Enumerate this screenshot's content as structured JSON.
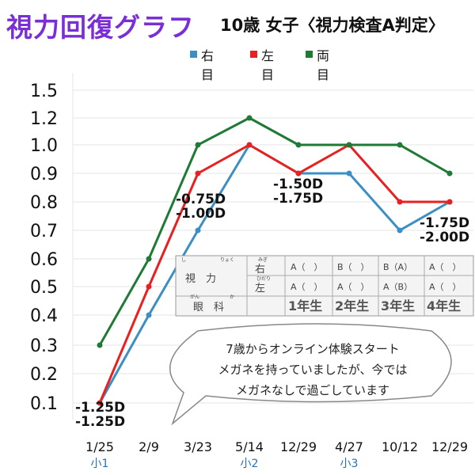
{
  "header": {
    "title": "視力回復グラフ",
    "subtitle": "10歳 女子〈視力検査A判定〉"
  },
  "chart_data": {
    "type": "line",
    "categories": [
      "1/25",
      "2/9",
      "3/23",
      "5/14",
      "12/29",
      "4/27",
      "10/12",
      "12/29"
    ],
    "grades": [
      "小1",
      "",
      "",
      "小2",
      "",
      "小3",
      "",
      ""
    ],
    "y_ticks": [
      "0.1",
      "0.2",
      "0.3",
      "0.4",
      "0.5",
      "0.6",
      "0.7",
      "0.8",
      "0.9",
      "1.0",
      "1.2",
      "1.5"
    ],
    "grid": true,
    "legend_position": "top-center",
    "series": [
      {
        "name": "右目",
        "color": "#3b8fc4",
        "values": [
          0.1,
          0.4,
          0.7,
          1.0,
          0.9,
          0.9,
          0.7,
          0.8
        ]
      },
      {
        "name": "左目",
        "color": "#e8201f",
        "values": [
          0.1,
          0.5,
          0.9,
          1.0,
          0.9,
          1.0,
          0.8,
          0.8
        ]
      },
      {
        "name": "両目",
        "color": "#1e7a35",
        "values": [
          0.3,
          0.6,
          1.0,
          1.2,
          1.0,
          1.0,
          1.0,
          0.9
        ]
      }
    ],
    "annotations": [
      {
        "category_index": 0,
        "lines": [
          "-1.25D",
          "-1.25D"
        ]
      },
      {
        "category_index": 2,
        "lines": [
          "-0.75D",
          "-1.00D"
        ]
      },
      {
        "category_index": 4,
        "lines": [
          "-1.50D",
          "-1.75D"
        ]
      },
      {
        "category_index": 7,
        "lines": [
          "-1.75D",
          "-2.00D"
        ]
      }
    ]
  },
  "exam_table": {
    "row_labels": [
      "視　力",
      "眼　科"
    ],
    "ruby": [
      "し",
      "りょく",
      "がん",
      "か"
    ],
    "eye_labels": [
      "右",
      "左"
    ],
    "eye_ruby": [
      "みぎ",
      "ひだり"
    ],
    "grades": [
      "1年生",
      "2年生",
      "3年生",
      "4年生"
    ],
    "right_results": [
      "A（　）",
      "B（　）",
      "B（A）",
      "A（　）"
    ],
    "left_results": [
      "A（　）",
      "A（　）",
      "A（B）",
      "A（　）"
    ]
  },
  "comment": {
    "lines": [
      "7歳からオンライン体験スタート",
      "メガネを持っていましたが、今では",
      "メガネなしで過ごしています"
    ]
  }
}
